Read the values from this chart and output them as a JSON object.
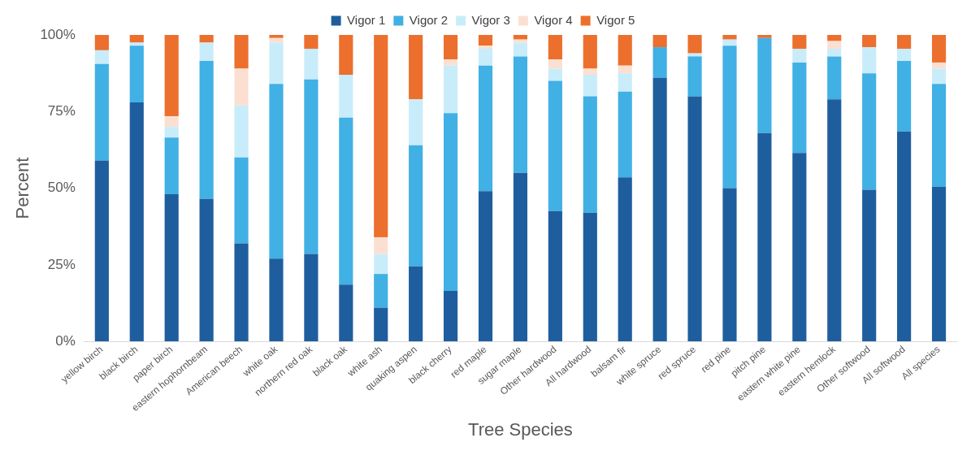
{
  "chart_data": {
    "type": "bar",
    "stacked": true,
    "xlabel": "Tree Species",
    "ylabel": "Percent",
    "legend": "top",
    "grid": false,
    "categories": [
      "yellow birch",
      "black birch",
      "paper birch",
      "eastern hophornbeam",
      "American beech",
      "white oak",
      "northern red oak",
      "black oak",
      "white ash",
      "quaking aspen",
      "black cherry",
      "red maple",
      "sugar maple",
      "Other hardwood",
      "All hardwood",
      "balsam fir",
      "white spruce",
      "red spruce",
      "red pine",
      "pitch pine",
      "eastern white pine",
      "eastern hemlock",
      "Other softwood",
      "All softwood",
      "All species"
    ],
    "ylim": [
      0,
      100
    ],
    "yticks": [
      {
        "value": 0,
        "label": "0%"
      },
      {
        "value": 25,
        "label": "25%"
      },
      {
        "value": 50,
        "label": "50%"
      },
      {
        "value": 75,
        "label": "75%"
      },
      {
        "value": 100,
        "label": "100%"
      }
    ],
    "series": [
      {
        "name": "Vigor 1",
        "color": "#1f5e9e",
        "values": [
          59,
          78,
          48,
          46.5,
          32,
          27,
          28.5,
          18.5,
          11,
          24.5,
          16.5,
          49,
          55,
          42.5,
          42,
          53.5,
          86,
          80,
          50,
          68,
          61.5,
          79,
          49.5,
          68.5,
          50.5
        ]
      },
      {
        "name": "Vigor 2",
        "color": "#41b0e4",
        "values": [
          31.5,
          18.5,
          18.5,
          45,
          28,
          57,
          57,
          54.5,
          11,
          39.5,
          58,
          41,
          38,
          42.5,
          38,
          28,
          10,
          13,
          46.5,
          31,
          29.5,
          14,
          38,
          23,
          33.5
        ]
      },
      {
        "name": "Vigor 3",
        "color": "#c9ecfa",
        "values": [
          4.5,
          1,
          3.5,
          6,
          17,
          13.5,
          10,
          14,
          6.5,
          15,
          15.5,
          5.5,
          4.5,
          4,
          7,
          6,
          0,
          1,
          2,
          0,
          4.5,
          2.5,
          8.5,
          4,
          5
        ]
      },
      {
        "name": "Vigor 4",
        "color": "#fbe0d2",
        "values": [
          0,
          0,
          3.5,
          0,
          12,
          1.5,
          0,
          0,
          5.5,
          0,
          2,
          1,
          1,
          3,
          2,
          2.5,
          0,
          0,
          0,
          0,
          0,
          2.5,
          0,
          0,
          2
        ]
      },
      {
        "name": "Vigor 5",
        "color": "#ec6f2d",
        "values": [
          5,
          2.5,
          26.5,
          2.5,
          11,
          1,
          4.5,
          13,
          66,
          21,
          8,
          3.5,
          1.5,
          8,
          11,
          10,
          4,
          6,
          1.5,
          1,
          4.5,
          2,
          4,
          4.5,
          9
        ]
      }
    ]
  }
}
